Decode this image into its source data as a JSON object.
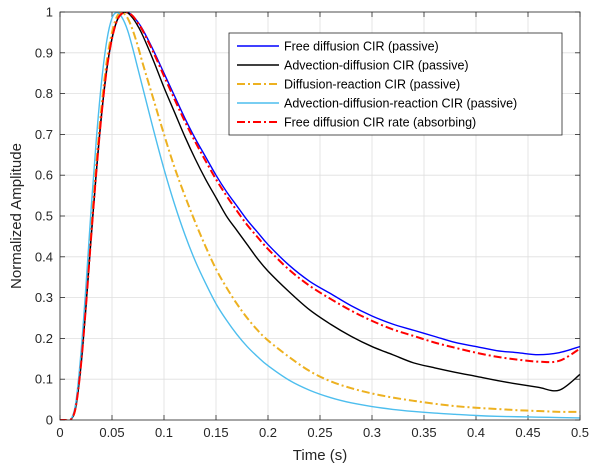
{
  "chart_data": {
    "type": "line",
    "xlabel": "Time (s)",
    "ylabel": "Normalized Amplitude",
    "xlim": [
      0,
      0.5
    ],
    "ylim": [
      0,
      1
    ],
    "xticks": [
      "0",
      "0.05",
      "0.1",
      "0.15",
      "0.2",
      "0.25",
      "0.3",
      "0.35",
      "0.4",
      "0.45",
      "0.5"
    ],
    "yticks": [
      "0",
      "0.1",
      "0.2",
      "0.3",
      "0.4",
      "0.5",
      "0.6",
      "0.7",
      "0.8",
      "0.9",
      "1"
    ],
    "grid": true,
    "legend_position": "top-right",
    "x": [
      0,
      0.005,
      0.01,
      0.015,
      0.02,
      0.025,
      0.03,
      0.035,
      0.04,
      0.045,
      0.05,
      0.055,
      0.06,
      0.065,
      0.07,
      0.075,
      0.08,
      0.09,
      0.1,
      0.11,
      0.12,
      0.13,
      0.14,
      0.15,
      0.16,
      0.17,
      0.18,
      0.19,
      0.2,
      0.22,
      0.24,
      0.26,
      0.28,
      0.3,
      0.32,
      0.34,
      0.36,
      0.38,
      0.4,
      0.42,
      0.44,
      0.46,
      0.48,
      0.5
    ],
    "series": [
      {
        "name": "Free diffusion CIR (passive)",
        "color": "#0000ff",
        "dash": "solid",
        "values": [
          0,
          0,
          0,
          0.03,
          0.13,
          0.28,
          0.45,
          0.61,
          0.75,
          0.86,
          0.935,
          0.98,
          0.997,
          0.999,
          0.99,
          0.975,
          0.955,
          0.905,
          0.85,
          0.795,
          0.74,
          0.69,
          0.645,
          0.6,
          0.56,
          0.525,
          0.49,
          0.46,
          0.43,
          0.38,
          0.34,
          0.31,
          0.28,
          0.255,
          0.235,
          0.22,
          0.205,
          0.19,
          0.18,
          0.17,
          0.165,
          0.16,
          0.165,
          0.18
        ]
      },
      {
        "name": "Advection-diffusion CIR (passive)",
        "color": "#000000",
        "dash": "solid",
        "values": [
          0,
          0,
          0,
          0.03,
          0.13,
          0.28,
          0.45,
          0.61,
          0.75,
          0.86,
          0.935,
          0.98,
          0.997,
          0.998,
          0.985,
          0.965,
          0.94,
          0.88,
          0.815,
          0.755,
          0.695,
          0.64,
          0.59,
          0.545,
          0.5,
          0.465,
          0.43,
          0.395,
          0.365,
          0.315,
          0.27,
          0.235,
          0.205,
          0.18,
          0.16,
          0.14,
          0.128,
          0.117,
          0.107,
          0.097,
          0.088,
          0.08,
          0.073,
          0.112
        ]
      },
      {
        "name": "Diffusion-reaction CIR (passive)",
        "color": "#edb120",
        "dash": "dashdot",
        "values": [
          0,
          0,
          0,
          0.03,
          0.14,
          0.29,
          0.47,
          0.63,
          0.77,
          0.88,
          0.95,
          0.99,
          0.998,
          0.985,
          0.955,
          0.915,
          0.87,
          0.785,
          0.7,
          0.62,
          0.55,
          0.485,
          0.425,
          0.37,
          0.325,
          0.285,
          0.25,
          0.22,
          0.195,
          0.155,
          0.12,
          0.095,
          0.078,
          0.065,
          0.055,
          0.047,
          0.04,
          0.034,
          0.03,
          0.027,
          0.024,
          0.022,
          0.02,
          0.02
        ]
      },
      {
        "name": "Advection-diffusion-reaction CIR (passive)",
        "color": "#4dbeee",
        "dash": "solid",
        "values": [
          0,
          0,
          0,
          0.04,
          0.16,
          0.33,
          0.52,
          0.69,
          0.83,
          0.93,
          0.985,
          0.999,
          0.985,
          0.955,
          0.91,
          0.86,
          0.81,
          0.71,
          0.615,
          0.53,
          0.455,
          0.39,
          0.335,
          0.285,
          0.245,
          0.21,
          0.18,
          0.155,
          0.133,
          0.098,
          0.073,
          0.055,
          0.042,
          0.033,
          0.026,
          0.021,
          0.017,
          0.014,
          0.011,
          0.009,
          0.008,
          0.007,
          0.006,
          0.005
        ]
      },
      {
        "name": "Free diffusion CIR rate (absorbing)",
        "color": "#ff0000",
        "dash": "dashdot",
        "values": [
          0,
          0,
          0,
          0.03,
          0.13,
          0.28,
          0.45,
          0.61,
          0.75,
          0.86,
          0.935,
          0.98,
          0.997,
          0.999,
          0.99,
          0.973,
          0.952,
          0.9,
          0.843,
          0.787,
          0.732,
          0.682,
          0.635,
          0.59,
          0.55,
          0.513,
          0.478,
          0.448,
          0.419,
          0.369,
          0.329,
          0.297,
          0.268,
          0.243,
          0.222,
          0.206,
          0.19,
          0.177,
          0.165,
          0.155,
          0.148,
          0.143,
          0.145,
          0.175
        ]
      }
    ]
  }
}
